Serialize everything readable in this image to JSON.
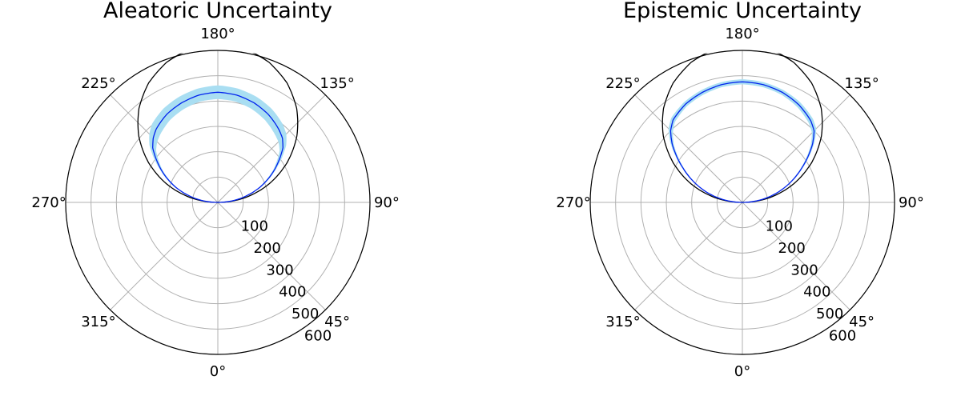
{
  "chart_data": [
    {
      "type": "polar-line",
      "title": "Aleatoric Uncertainty",
      "theta_zero_location": "bottom",
      "theta_direction": "counterclockwise",
      "angle_ticks": [
        0,
        45,
        90,
        135,
        180,
        225,
        270,
        315
      ],
      "angle_tick_labels": [
        "0°",
        "45°",
        "90°",
        "135°",
        "180°",
        "225°",
        "270°",
        "315°"
      ],
      "radial_ticks": [
        100,
        200,
        300,
        400,
        500,
        600
      ],
      "radial_tick_labels": [
        "100",
        "200",
        "300",
        "400",
        "500",
        "600"
      ],
      "rlim": [
        0,
        600
      ],
      "radial_label_angle_deg": 30,
      "grid": true,
      "colors": {
        "mean": "#0022ee",
        "band": "#a9def2",
        "reference": "#000000",
        "grid": "#b0b0b0"
      },
      "series": [
        {
          "role": "reference",
          "theta_deg": [
            90,
            100,
            110,
            120,
            130,
            140,
            150,
            160,
            170,
            180,
            190,
            200,
            210,
            220,
            230,
            240,
            250,
            260,
            270
          ],
          "r": [
            0,
            110,
            216,
            316,
            407,
            484,
            545,
            589,
            616,
            625,
            616,
            589,
            545,
            484,
            407,
            316,
            216,
            110,
            0
          ]
        },
        {
          "role": "mean",
          "theta_deg": [
            90,
            100,
            110,
            120,
            130,
            135,
            140,
            150,
            160,
            170,
            180,
            190,
            200,
            210,
            220,
            225,
            230,
            240,
            250,
            260,
            270
          ],
          "r": [
            0,
            90,
            178,
            258,
            335,
            360,
            375,
            400,
            418,
            430,
            435,
            430,
            418,
            402,
            378,
            360,
            335,
            258,
            178,
            90,
            0
          ],
          "band_low": [
            0,
            88,
            172,
            250,
            318,
            338,
            350,
            374,
            392,
            404,
            408,
            404,
            392,
            376,
            352,
            338,
            318,
            250,
            172,
            88,
            0
          ],
          "band_high": [
            0,
            92,
            184,
            266,
            352,
            382,
            400,
            426,
            444,
            456,
            462,
            456,
            444,
            428,
            404,
            382,
            352,
            266,
            184,
            92,
            0
          ]
        }
      ]
    },
    {
      "type": "polar-line",
      "title": "Epistemic Uncertainty",
      "theta_zero_location": "bottom",
      "theta_direction": "counterclockwise",
      "angle_ticks": [
        0,
        45,
        90,
        135,
        180,
        225,
        270,
        315
      ],
      "angle_tick_labels": [
        "0°",
        "45°",
        "90°",
        "135°",
        "180°",
        "225°",
        "270°",
        "315°"
      ],
      "radial_ticks": [
        100,
        200,
        300,
        400,
        500,
        600
      ],
      "radial_tick_labels": [
        "100",
        "200",
        "300",
        "400",
        "500",
        "600"
      ],
      "rlim": [
        0,
        600
      ],
      "radial_label_angle_deg": 30,
      "grid": true,
      "colors": {
        "mean": "#0022ee",
        "band": "#a9def2",
        "reference": "#000000",
        "grid": "#b0b0b0"
      },
      "series": [
        {
          "role": "reference",
          "theta_deg": [
            90,
            100,
            110,
            120,
            130,
            140,
            150,
            160,
            170,
            180,
            190,
            200,
            210,
            220,
            230,
            240,
            250,
            260,
            270
          ],
          "r": [
            0,
            110,
            216,
            316,
            407,
            484,
            545,
            589,
            616,
            625,
            616,
            589,
            545,
            484,
            407,
            316,
            216,
            110,
            0
          ]
        },
        {
          "role": "mean",
          "theta_deg": [
            90,
            100,
            110,
            120,
            130,
            135,
            140,
            150,
            160,
            170,
            180,
            190,
            200,
            210,
            220,
            225,
            230,
            240,
            250,
            260,
            270
          ],
          "r": [
            0,
            92,
            182,
            270,
            362,
            400,
            420,
            445,
            462,
            472,
            476,
            472,
            462,
            448,
            425,
            400,
            362,
            270,
            182,
            92,
            0
          ],
          "band_low": [
            0,
            90,
            178,
            264,
            352,
            388,
            408,
            434,
            452,
            462,
            466,
            462,
            452,
            438,
            414,
            388,
            352,
            264,
            178,
            90,
            0
          ],
          "band_high": [
            0,
            94,
            186,
            276,
            372,
            412,
            432,
            456,
            472,
            482,
            486,
            482,
            472,
            458,
            436,
            412,
            372,
            276,
            186,
            94,
            0
          ]
        }
      ]
    }
  ]
}
